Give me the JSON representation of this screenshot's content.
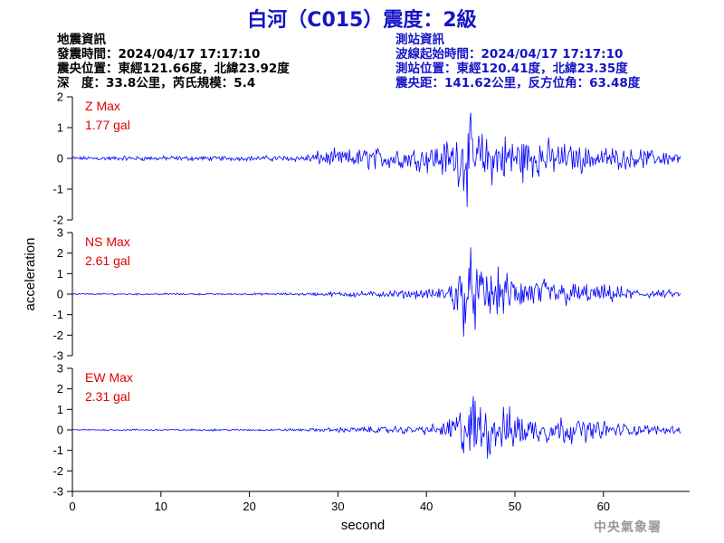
{
  "title": "白河（C015）震度：2級",
  "event_info": {
    "heading": "地震資訊",
    "origin_time": "發震時間：2024/04/17 17:17:10",
    "epicenter": "震央位置：東經121.66度，北緯23.92度",
    "depth_magnitude": "深　度：33.8公里，芮氏規模：5.4"
  },
  "station_info": {
    "heading": "測站資訊",
    "wave_start": "波線起始時間：2024/04/17 17:17:10",
    "location": "測站位置：東經120.41度，北緯23.35度",
    "distance": "震央距：141.62公里，反方位角：63.48度"
  },
  "footer": "中央氣象署",
  "colors": {
    "title": "#1414c8",
    "trace": "#0000ff",
    "max_label": "#e00000"
  },
  "chart_data": {
    "type": "line",
    "xlabel": "second",
    "ylabel": "acceleration",
    "xlim": [
      0,
      69
    ],
    "xticks": [
      0,
      10,
      20,
      30,
      40,
      50,
      60
    ],
    "panels": [
      {
        "name": "Z",
        "max_label": "Z Max",
        "max_value": "1.77 gal",
        "ylim": [
          -2,
          2
        ],
        "yticks": [
          -2,
          -1,
          0,
          1,
          2
        ],
        "x": [
          0,
          5,
          10,
          15,
          20,
          24,
          26,
          27,
          28,
          29,
          30,
          31,
          32,
          33,
          34,
          35,
          36,
          37,
          38,
          39,
          40,
          41,
          42,
          42.5,
          43,
          43.5,
          44,
          44.5,
          45,
          45.5,
          46,
          46.5,
          47,
          47.5,
          48,
          48.5,
          49,
          49.5,
          50,
          50.5,
          51,
          51.5,
          52,
          52.5,
          53,
          53.5,
          54,
          54.5,
          55,
          55.5,
          56,
          56.5,
          57,
          57.5,
          58,
          58.5,
          59,
          59.5,
          60,
          60.5,
          61,
          61.5,
          62,
          62.5,
          63,
          63.5,
          64,
          64.5,
          65,
          65.5,
          66,
          66.5,
          67,
          67.5,
          68,
          68.5
        ],
        "y": [
          0.08,
          0.1,
          0.1,
          0.1,
          0.1,
          0.12,
          0.15,
          0.25,
          0.3,
          0.35,
          0.4,
          0.35,
          0.45,
          0.5,
          0.5,
          0.45,
          0.5,
          0.55,
          0.5,
          0.5,
          0.55,
          0.6,
          0.75,
          0.85,
          0.9,
          1.1,
          1.45,
          1.77,
          1.65,
          1.4,
          1.25,
          1.15,
          1.2,
          1.05,
          1.0,
          1.1,
          1.05,
          1.2,
          1.0,
          0.95,
          1.1,
          0.9,
          0.85,
          0.8,
          0.9,
          0.75,
          0.8,
          0.7,
          0.65,
          0.75,
          0.6,
          0.65,
          0.55,
          0.6,
          0.55,
          0.5,
          0.55,
          0.5,
          0.45,
          0.5,
          0.45,
          0.45,
          0.4,
          0.45,
          0.4,
          0.4,
          0.35,
          0.4,
          0.35,
          0.4,
          0.35,
          0.35,
          0.35,
          0.3,
          0.3,
          0.3
        ]
      },
      {
        "name": "NS",
        "max_label": "NS Max",
        "max_value": "2.61 gal",
        "ylim": [
          -3,
          3
        ],
        "yticks": [
          -3,
          -2,
          -1,
          0,
          1,
          2,
          3
        ],
        "x": [
          0,
          5,
          10,
          15,
          20,
          25,
          28,
          30,
          32,
          34,
          36,
          38,
          40,
          41,
          42,
          42.5,
          43,
          43.5,
          44,
          44.5,
          45,
          45.5,
          46,
          46.5,
          47,
          47.5,
          48,
          48.5,
          49,
          49.5,
          50,
          50.5,
          51,
          51.5,
          52,
          52.5,
          53,
          53.5,
          54,
          54.5,
          55,
          55.5,
          56,
          56.5,
          57,
          57.5,
          58,
          58.5,
          59,
          59.5,
          60,
          60.5,
          61,
          61.5,
          62,
          62.5,
          63,
          63.5,
          64,
          64.5,
          65,
          65.5,
          66,
          66.5,
          67,
          67.5,
          68,
          68.5
        ],
        "y": [
          0.05,
          0.05,
          0.05,
          0.05,
          0.06,
          0.08,
          0.12,
          0.15,
          0.2,
          0.18,
          0.22,
          0.25,
          0.3,
          0.35,
          0.5,
          0.8,
          1.2,
          1.7,
          2.2,
          2.4,
          2.61,
          2.2,
          1.9,
          1.7,
          1.9,
          1.6,
          1.4,
          1.5,
          1.3,
          1.25,
          1.35,
          1.2,
          1.0,
          1.1,
          0.9,
          1.0,
          0.95,
          1.1,
          0.9,
          0.85,
          0.8,
          0.9,
          0.75,
          0.7,
          0.8,
          0.65,
          0.7,
          0.6,
          0.55,
          0.6,
          0.55,
          0.5,
          0.55,
          0.45,
          0.5,
          0.45,
          0.4,
          0.45,
          0.35,
          0.35,
          0.3,
          0.3,
          0.3,
          0.25,
          0.25,
          0.25,
          0.2,
          0.2
        ]
      },
      {
        "name": "EW",
        "max_label": "EW Max",
        "max_value": "2.31 gal",
        "ylim": [
          -3,
          3
        ],
        "yticks": [
          -3,
          -2,
          -1,
          0,
          1,
          2,
          3
        ],
        "x": [
          0,
          5,
          10,
          15,
          20,
          25,
          28,
          30,
          32,
          34,
          36,
          38,
          40,
          41,
          42,
          42.5,
          43,
          43.5,
          44,
          44.5,
          45,
          45.5,
          46,
          46.5,
          47,
          47.5,
          48,
          48.5,
          49,
          49.5,
          50,
          50.5,
          51,
          51.5,
          52,
          52.5,
          53,
          53.5,
          54,
          54.5,
          55,
          55.5,
          56,
          56.5,
          57,
          57.5,
          58,
          58.5,
          59,
          59.5,
          60,
          60.5,
          61,
          61.5,
          62,
          62.5,
          63,
          63.5,
          64,
          64.5,
          65,
          65.5,
          66,
          66.5,
          67,
          67.5,
          68,
          68.5
        ],
        "y": [
          0.05,
          0.05,
          0.05,
          0.06,
          0.06,
          0.08,
          0.12,
          0.15,
          0.2,
          0.2,
          0.22,
          0.25,
          0.3,
          0.35,
          0.5,
          0.8,
          1.1,
          1.5,
          1.9,
          2.0,
          2.31,
          2.1,
          1.8,
          1.6,
          1.8,
          1.7,
          1.5,
          1.6,
          1.4,
          1.3,
          1.35,
          1.2,
          1.1,
          1.2,
          1.0,
          1.05,
          0.95,
          1.1,
          0.9,
          0.85,
          0.8,
          0.9,
          0.75,
          0.8,
          0.7,
          0.65,
          0.7,
          0.6,
          0.6,
          0.55,
          0.6,
          0.5,
          0.5,
          0.45,
          0.5,
          0.4,
          0.4,
          0.4,
          0.35,
          0.35,
          0.3,
          0.3,
          0.3,
          0.3,
          0.25,
          0.25,
          0.25,
          0.25
        ]
      }
    ]
  }
}
